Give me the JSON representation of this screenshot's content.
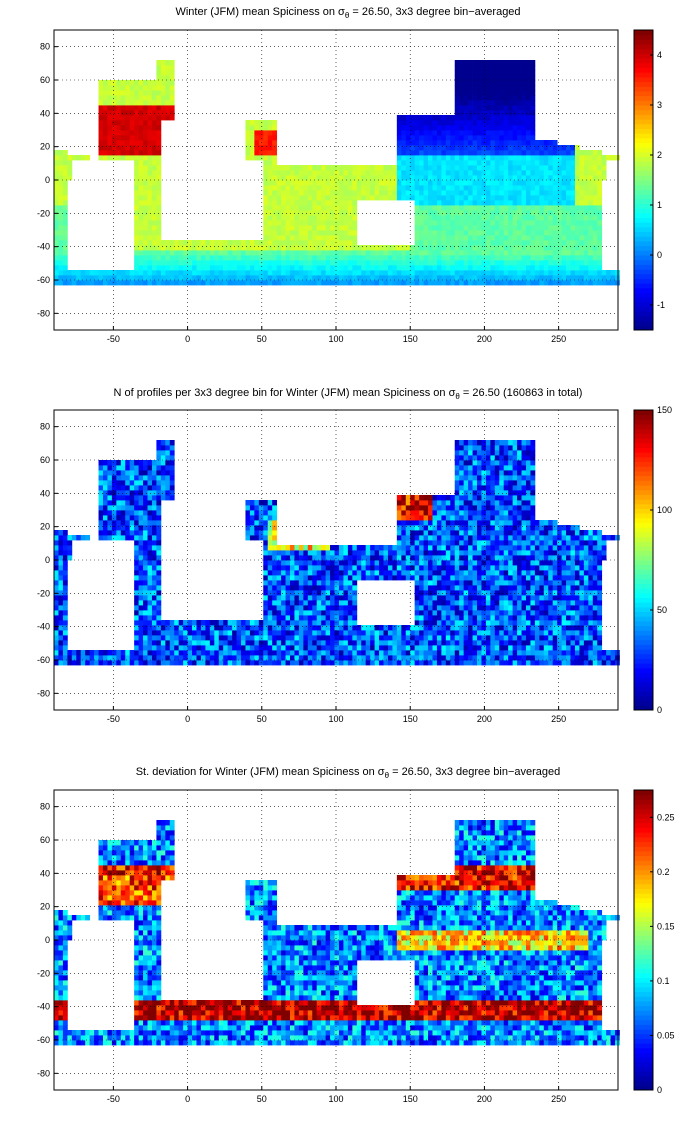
{
  "colormap": [
    "#00008f",
    "#0000ff",
    "#0080ff",
    "#00ffff",
    "#80ff80",
    "#ffff00",
    "#ff8000",
    "#ff0000",
    "#800000"
  ],
  "land_color": "#ffffff",
  "chart_data": [
    {
      "type": "heatmap",
      "title_pre": "Winter (JFM) mean Spiciness on σ",
      "title_sub": "θ",
      "title_post": " = 26.50, 3x3 degree bin−averaged",
      "xlabel": "",
      "ylabel": "",
      "xlim": [
        -90,
        290
      ],
      "ylim": [
        -90,
        90
      ],
      "xticks": [
        -50,
        0,
        50,
        100,
        150,
        200,
        250
      ],
      "yticks": [
        80,
        60,
        40,
        20,
        0,
        -20,
        -40,
        -60,
        -80
      ],
      "grid": true,
      "colorbar": {
        "range": [
          -1.5,
          4.5
        ],
        "ticks": [
          "4",
          "3",
          "2",
          "1",
          "0",
          "-1"
        ],
        "tick_values": [
          4,
          3,
          2,
          1,
          0,
          -1
        ]
      },
      "fields": "Atlantic north subtropical gyre highest (~4), South Atlantic / Indian ~2, North Pacific subpolar lowest (~-1), Southern Ocean ~0 to 1"
    },
    {
      "type": "heatmap",
      "title_pre": "N of profiles per 3x3 degree bin for Winter (JFM) mean Spiciness on σ",
      "title_sub": "θ",
      "title_post": " = 26.50 (160863 in total)",
      "xlabel": "",
      "ylabel": "",
      "xlim": [
        -90,
        290
      ],
      "ylim": [
        -90,
        90
      ],
      "xticks": [
        -50,
        0,
        50,
        100,
        150,
        200,
        250
      ],
      "yticks": [
        80,
        60,
        40,
        20,
        0,
        -20,
        -40,
        -60,
        -80
      ],
      "grid": true,
      "colorbar": {
        "range": [
          0,
          150
        ],
        "ticks": [
          "150",
          "100",
          "50",
          "0"
        ],
        "tick_values": [
          150,
          100,
          50,
          0
        ]
      },
      "total_profiles": 160863,
      "fields": "Mostly 20-60 profiles per bin; highs (>120) in Kuroshio region near 150E 30-40N, Arabian Sea, Bay of Bengal"
    },
    {
      "type": "heatmap",
      "title_pre": "St. deviation for Winter (JFM) mean Spiciness on σ",
      "title_sub": "θ",
      "title_post": " = 26.50, 3x3 degree bin−averaged",
      "xlabel": "",
      "ylabel": "",
      "xlim": [
        -90,
        290
      ],
      "ylim": [
        -90,
        90
      ],
      "xticks": [
        -50,
        0,
        50,
        100,
        150,
        200,
        250
      ],
      "yticks": [
        80,
        60,
        40,
        20,
        0,
        -20,
        -40,
        -60,
        -80
      ],
      "grid": true,
      "colorbar": {
        "range": [
          0,
          0.275
        ],
        "ticks": [
          "0.25",
          "0.2",
          "0.15",
          "0.1",
          "0.05",
          "0"
        ],
        "tick_values": [
          0.25,
          0.2,
          0.15,
          0.1,
          0.05,
          0
        ]
      },
      "fields": "High (>0.25) along Antarctic Circumpolar front ~40-45S and Gulf Stream / Kuroshio extensions; low (~0.05) in gyre interiors"
    }
  ]
}
